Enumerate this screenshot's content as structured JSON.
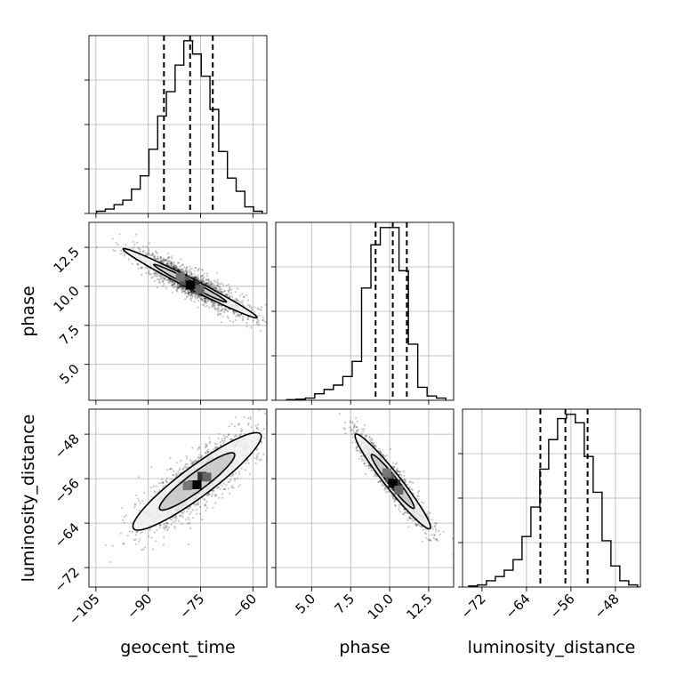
{
  "chart_data": {
    "type": "corner",
    "parameters": [
      "geocent_time",
      "phase",
      "luminosity_distance"
    ],
    "ranges": {
      "geocent_time": [
        -107,
        -56
      ],
      "phase": [
        2.7,
        14.1
      ],
      "luminosity_distance": [
        -75.5,
        -43.5
      ]
    },
    "ticks": {
      "geocent_time": [
        -105,
        -90,
        -75,
        -60
      ],
      "phase": [
        5.0,
        7.5,
        10.0,
        12.5
      ],
      "luminosity_distance": [
        -72,
        -64,
        -56,
        -48
      ]
    },
    "tick_labels": {
      "geocent_time": [
        "−105",
        "−90",
        "−75",
        "−60"
      ],
      "phase": [
        "5.0",
        "7.5",
        "10.0",
        "12.5"
      ],
      "luminosity_distance": [
        "−72",
        "−64",
        "−56",
        "−48"
      ]
    },
    "quantiles": {
      "geocent_time": [
        -85.5,
        -78.0,
        -71.5
      ],
      "phase": [
        9.1,
        10.2,
        11.1
      ],
      "luminosity_distance": [
        -61.5,
        -57.0,
        -53.0
      ]
    },
    "histograms": {
      "geocent_time": {
        "edges": [
          -104.8,
          -102.3,
          -99.8,
          -97.3,
          -94.8,
          -92.3,
          -89.8,
          -87.3,
          -84.8,
          -82.3,
          -79.8,
          -77.3,
          -74.8,
          -72.3,
          -69.8,
          -67.3,
          -64.8,
          -62.3,
          -59.8,
          -57.3
        ],
        "counts": [
          1,
          2,
          4,
          6,
          11,
          17,
          29,
          44,
          55,
          67,
          78,
          72,
          62,
          47,
          28,
          16,
          10,
          3,
          1
        ]
      },
      "phase": {
        "edges": [
          3.4,
          4.0,
          4.6,
          5.2,
          5.8,
          6.4,
          7.0,
          7.6,
          8.2,
          8.8,
          9.4,
          10.0,
          10.6,
          11.2,
          11.8,
          12.4,
          13.0,
          13.6
        ],
        "counts": [
          0.3,
          0.5,
          1,
          3,
          5,
          7,
          11,
          18,
          52,
          72,
          80,
          80,
          60,
          26,
          6,
          2,
          1
        ]
      },
      "luminosity_distance": {
        "edges": [
          -74.4,
          -72.8,
          -71.2,
          -69.6,
          -68.0,
          -66.4,
          -64.8,
          -63.2,
          -61.6,
          -60.0,
          -58.4,
          -56.8,
          -55.2,
          -53.6,
          -52.0,
          -50.4,
          -48.8,
          -47.2,
          -45.6,
          -44.0
        ],
        "counts": [
          0.5,
          1,
          3,
          5,
          8,
          13,
          24,
          38,
          56,
          70,
          80,
          82,
          78,
          62,
          45,
          22,
          10,
          3,
          1
        ]
      }
    },
    "joint": [
      {
        "x": "geocent_time",
        "y": "phase",
        "center": [
          -78,
          10.2
        ],
        "slope": -0.114,
        "sd_x": 8.0,
        "sd_perp": 0.45,
        "contours": [
          {
            "sx": 2.4,
            "sp": 0.8
          },
          {
            "sx": 1.3,
            "sp": 0.45
          }
        ]
      },
      {
        "x": "geocent_time",
        "y": "luminosity_distance",
        "center": [
          -76,
          -56.5
        ],
        "slope": 0.44,
        "sd_x": 8.0,
        "sd_perp": 2.5,
        "contours": [
          {
            "sx": 2.3,
            "sp": 1.35
          },
          {
            "sx": 1.35,
            "sp": 0.8
          }
        ]
      },
      {
        "x": "phase",
        "y": "luminosity_distance",
        "center": [
          10.2,
          -56.5
        ],
        "slope": -3.4,
        "sd_x": 1.1,
        "sd_perp": 1.4,
        "contours": [
          {
            "sx": 2.2,
            "sp": 1.6
          },
          {
            "sx": 1.25,
            "sp": 0.95
          }
        ]
      }
    ]
  }
}
